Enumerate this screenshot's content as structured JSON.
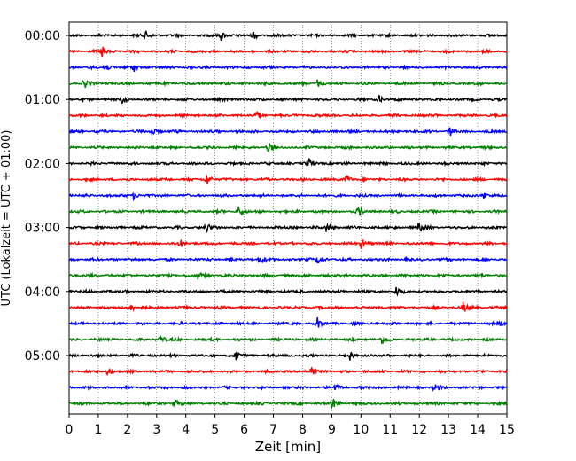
{
  "chart_data": {
    "type": "helicorder",
    "xlabel": "Zeit  [min]",
    "ylabel": "UTC (Lokalzeit = UTC + 01:00)",
    "xlim": [
      0,
      15
    ],
    "x_ticks": [
      "0",
      "1",
      "2",
      "3",
      "4",
      "5",
      "6",
      "7",
      "8",
      "9",
      "10",
      "11",
      "12",
      "13",
      "14",
      "15"
    ],
    "y_tick_labels": [
      "00:00",
      "01:00",
      "02:00",
      "03:00",
      "04:00",
      "05:00"
    ],
    "trace_interval_min": 15,
    "trace_count": 24,
    "trace_colors": [
      "#000000",
      "#ff0000",
      "#0000ff",
      "#008000"
    ],
    "vertical_grid": "dotted",
    "events": [
      {
        "trace": 0,
        "t": 2.6,
        "amp": 6
      },
      {
        "trace": 0,
        "t": 5.2,
        "amp": 6
      },
      {
        "trace": 0,
        "t": 6.3,
        "amp": 5
      },
      {
        "trace": 1,
        "t": 1.1,
        "amp": 9
      },
      {
        "trace": 2,
        "t": 1.2,
        "amp": 6
      },
      {
        "trace": 2,
        "t": 2.2,
        "amp": 5
      },
      {
        "trace": 3,
        "t": 0.5,
        "amp": 6
      },
      {
        "trace": 3,
        "t": 8.5,
        "amp": 5
      },
      {
        "trace": 4,
        "t": 1.8,
        "amp": 5
      },
      {
        "trace": 4,
        "t": 10.6,
        "amp": 5
      },
      {
        "trace": 5,
        "t": 6.4,
        "amp": 5
      },
      {
        "trace": 6,
        "t": 2.8,
        "amp": 6
      },
      {
        "trace": 6,
        "t": 13.0,
        "amp": 7
      },
      {
        "trace": 7,
        "t": 6.8,
        "amp": 5
      },
      {
        "trace": 8,
        "t": 8.2,
        "amp": 6
      },
      {
        "trace": 9,
        "t": 4.7,
        "amp": 8
      },
      {
        "trace": 9,
        "t": 9.5,
        "amp": 6
      },
      {
        "trace": 10,
        "t": 2.2,
        "amp": 5
      },
      {
        "trace": 10,
        "t": 14.2,
        "amp": 5
      },
      {
        "trace": 11,
        "t": 5.8,
        "amp": 6
      },
      {
        "trace": 11,
        "t": 9.9,
        "amp": 6
      },
      {
        "trace": 12,
        "t": 4.7,
        "amp": 6
      },
      {
        "trace": 12,
        "t": 8.8,
        "amp": 6
      },
      {
        "trace": 12,
        "t": 12.0,
        "amp": 7
      },
      {
        "trace": 13,
        "t": 3.8,
        "amp": 5
      },
      {
        "trace": 13,
        "t": 10.0,
        "amp": 6
      },
      {
        "trace": 14,
        "t": 6.5,
        "amp": 7
      },
      {
        "trace": 14,
        "t": 8.5,
        "amp": 7
      },
      {
        "trace": 15,
        "t": 4.4,
        "amp": 5
      },
      {
        "trace": 16,
        "t": 11.2,
        "amp": 6
      },
      {
        "trace": 17,
        "t": 2.1,
        "amp": 6
      },
      {
        "trace": 17,
        "t": 13.5,
        "amp": 7
      },
      {
        "trace": 18,
        "t": 8.5,
        "amp": 6
      },
      {
        "trace": 18,
        "t": 14.7,
        "amp": 5
      },
      {
        "trace": 19,
        "t": 3.1,
        "amp": 6
      },
      {
        "trace": 19,
        "t": 10.7,
        "amp": 5
      },
      {
        "trace": 20,
        "t": 5.7,
        "amp": 6
      },
      {
        "trace": 20,
        "t": 9.6,
        "amp": 6
      },
      {
        "trace": 21,
        "t": 8.3,
        "amp": 9
      },
      {
        "trace": 21,
        "t": 1.3,
        "amp": 5
      },
      {
        "trace": 22,
        "t": 9.1,
        "amp": 5
      },
      {
        "trace": 22,
        "t": 12.5,
        "amp": 5
      },
      {
        "trace": 23,
        "t": 9.0,
        "amp": 7
      },
      {
        "trace": 23,
        "t": 3.6,
        "amp": 5
      }
    ]
  }
}
